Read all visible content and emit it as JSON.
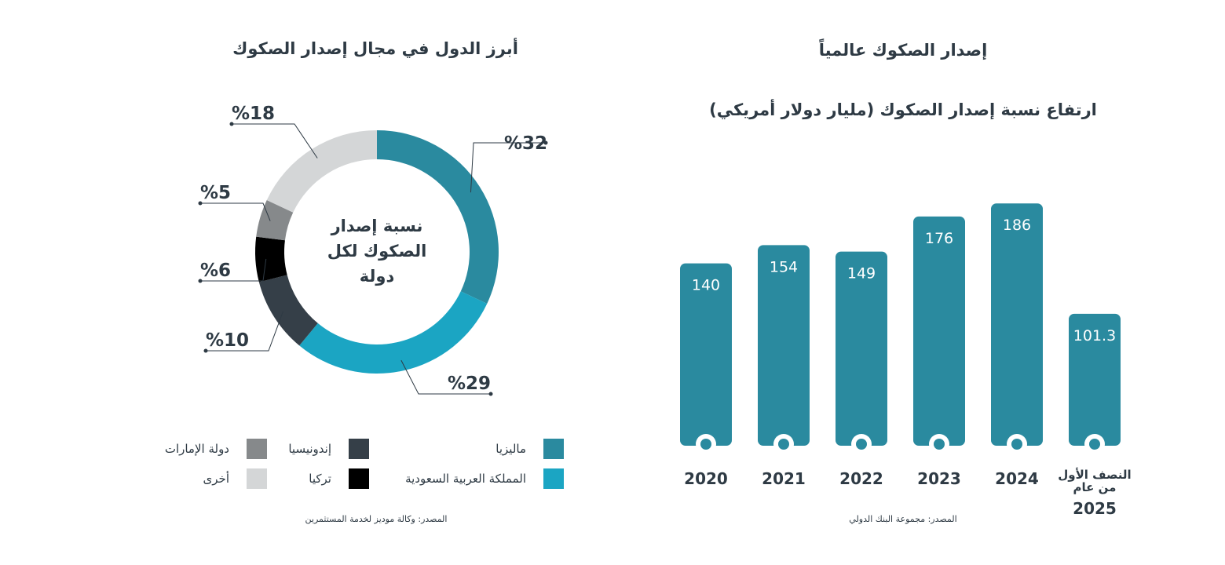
{
  "left_panel": {
    "title": "أبرز الدول في مجال إصدار الصكوك",
    "source": "المصدر: وكالة موديز لخدمة المستثمرين"
  },
  "right_panel": {
    "title": "إصدار الصكوك عالمياً",
    "subtitle": "ارتفاع نسبة إصدار الصكوك (مليار دولار أمريكي)",
    "source": "المصدر: مجموعة البنك الدولي"
  },
  "colors": {
    "malaysia": "#2a8a9f",
    "saudi": "#1ba5c3",
    "indonesia": "#353f48",
    "turkey": "#000000",
    "uae": "#86898b",
    "other": "#d4d6d7",
    "bar": "#2a8a9f"
  },
  "chart_data": [
    {
      "type": "pie",
      "variant": "donut",
      "center_label": [
        "نسبة إصدار",
        "الصكوك لكل",
        "دولة"
      ],
      "slices": [
        {
          "name": "ماليزيا",
          "value": 32,
          "label": "%32",
          "color": "#2a8a9f"
        },
        {
          "name": "المملكة العربية السعودية",
          "value": 29,
          "label": "%29",
          "color": "#1ba5c3"
        },
        {
          "name": "إندونيسيا",
          "value": 10,
          "label": "%10",
          "color": "#353f48"
        },
        {
          "name": "تركيا",
          "value": 6,
          "label": "%6",
          "color": "#000000"
        },
        {
          "name": "دولة الإمارات",
          "value": 5,
          "label": "%5",
          "color": "#86898b"
        },
        {
          "name": "أخرى",
          "value": 18,
          "label": "%18",
          "color": "#d4d6d7"
        }
      ],
      "legend": [
        {
          "name": "ماليزيا",
          "color": "#2a8a9f"
        },
        {
          "name": "إندونيسيا",
          "color": "#353f48"
        },
        {
          "name": "دولة الإمارات",
          "color": "#86898b"
        },
        {
          "name": "المملكة العربية السعودية",
          "color": "#1ba5c3"
        },
        {
          "name": "تركيا",
          "color": "#000000"
        },
        {
          "name": "أخرى",
          "color": "#d4d6d7"
        }
      ],
      "legend_placement": "bottom"
    },
    {
      "type": "bar",
      "title": "ارتفاع نسبة إصدار الصكوك (مليار دولار أمريكي)",
      "categories": [
        "2020",
        "2021",
        "2022",
        "2023",
        "2024",
        "النصف الأول من عام 2025"
      ],
      "category_lines": [
        [
          "2020"
        ],
        [
          "2021"
        ],
        [
          "2022"
        ],
        [
          "2023"
        ],
        [
          "2024"
        ],
        [
          "النصف الأول",
          "من عام",
          "2025"
        ]
      ],
      "values": [
        140,
        154,
        149,
        176,
        186,
        101.3
      ],
      "value_labels": [
        "140",
        "154",
        "149",
        "176",
        "186",
        "101.3"
      ],
      "ylim": [
        0,
        200
      ],
      "grid": false
    }
  ]
}
